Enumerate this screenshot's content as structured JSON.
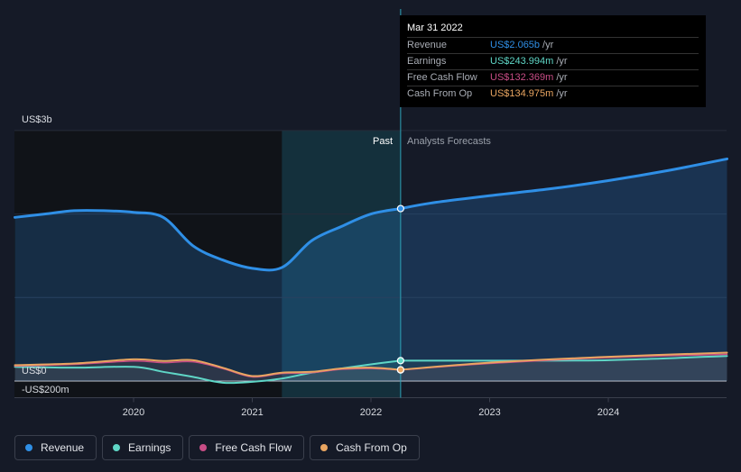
{
  "chart_data": {
    "type": "area",
    "x_ticks": [
      "2020",
      "2021",
      "2022",
      "2023",
      "2024"
    ],
    "y_label_top": "US$3b",
    "y_label_zero": "US$0",
    "y_label_neg": "-US$200m",
    "ylim": [
      -0.2,
      3.0
    ],
    "divider_x": 2022.25,
    "forecast_start": 2021.25,
    "past_label": "Past",
    "forecast_label": "Analysts Forecasts",
    "series": [
      {
        "name": "Revenue",
        "color": "#2f8fe6",
        "line_width": 3,
        "fill": true,
        "points": [
          [
            2019.0,
            1.96
          ],
          [
            2019.25,
            2.0
          ],
          [
            2019.5,
            2.04
          ],
          [
            2019.75,
            2.04
          ],
          [
            2020.0,
            2.02
          ],
          [
            2020.25,
            1.96
          ],
          [
            2020.5,
            1.62
          ],
          [
            2020.75,
            1.45
          ],
          [
            2021.0,
            1.35
          ],
          [
            2021.25,
            1.36
          ],
          [
            2021.5,
            1.68
          ],
          [
            2021.75,
            1.85
          ],
          [
            2022.0,
            2.0
          ],
          [
            2022.25,
            2.065
          ]
        ],
        "forecast": [
          [
            2022.25,
            2.065
          ],
          [
            2022.5,
            2.13
          ],
          [
            2023.0,
            2.22
          ],
          [
            2023.5,
            2.3
          ],
          [
            2024.0,
            2.4
          ],
          [
            2024.5,
            2.52
          ],
          [
            2025.0,
            2.66
          ]
        ]
      },
      {
        "name": "Earnings",
        "color": "#5fd6c6",
        "line_width": 2,
        "fill": false,
        "points": [
          [
            2019.0,
            0.17
          ],
          [
            2019.5,
            0.16
          ],
          [
            2020.0,
            0.17
          ],
          [
            2020.25,
            0.11
          ],
          [
            2020.5,
            0.05
          ],
          [
            2020.75,
            -0.02
          ],
          [
            2021.0,
            -0.01
          ],
          [
            2021.25,
            0.03
          ],
          [
            2021.5,
            0.1
          ],
          [
            2021.75,
            0.15
          ],
          [
            2022.0,
            0.2
          ],
          [
            2022.25,
            0.244
          ]
        ],
        "forecast": [
          [
            2022.25,
            0.244
          ],
          [
            2023.0,
            0.244
          ],
          [
            2024.0,
            0.25
          ],
          [
            2025.0,
            0.3
          ]
        ]
      },
      {
        "name": "Free Cash Flow",
        "color": "#c84d86",
        "line_width": 1.5,
        "fill": false,
        "points": [
          [
            2019.0,
            0.18
          ],
          [
            2019.5,
            0.2
          ],
          [
            2020.0,
            0.24
          ],
          [
            2020.25,
            0.22
          ],
          [
            2020.5,
            0.23
          ],
          [
            2020.75,
            0.15
          ],
          [
            2021.0,
            0.05
          ],
          [
            2021.25,
            0.09
          ],
          [
            2021.5,
            0.1
          ],
          [
            2021.75,
            0.14
          ],
          [
            2022.0,
            0.15
          ],
          [
            2022.25,
            0.132
          ]
        ],
        "forecast": [
          [
            2022.25,
            0.132
          ],
          [
            2023.0,
            0.21
          ],
          [
            2024.0,
            0.28
          ],
          [
            2025.0,
            0.32
          ]
        ]
      },
      {
        "name": "Cash From Op",
        "color": "#e9a561",
        "line_width": 2,
        "fill": false,
        "points": [
          [
            2019.0,
            0.19
          ],
          [
            2019.5,
            0.21
          ],
          [
            2020.0,
            0.26
          ],
          [
            2020.25,
            0.24
          ],
          [
            2020.5,
            0.25
          ],
          [
            2020.75,
            0.16
          ],
          [
            2021.0,
            0.06
          ],
          [
            2021.25,
            0.1
          ],
          [
            2021.5,
            0.11
          ],
          [
            2021.75,
            0.15
          ],
          [
            2022.0,
            0.16
          ],
          [
            2022.25,
            0.135
          ]
        ],
        "forecast": [
          [
            2022.25,
            0.135
          ],
          [
            2023.0,
            0.22
          ],
          [
            2024.0,
            0.29
          ],
          [
            2025.0,
            0.34
          ]
        ]
      }
    ]
  },
  "tooltip": {
    "date": "Mar 31 2022",
    "rows": [
      {
        "label": "Revenue",
        "value": "US$2.065b",
        "unit": "/yr",
        "color": "#2f8fe6"
      },
      {
        "label": "Earnings",
        "value": "US$243.994m",
        "unit": "/yr",
        "color": "#5fd6c6"
      },
      {
        "label": "Free Cash Flow",
        "value": "US$132.369m",
        "unit": "/yr",
        "color": "#c84d86"
      },
      {
        "label": "Cash From Op",
        "value": "US$134.975m",
        "unit": "/yr",
        "color": "#e9a561"
      }
    ]
  },
  "legend": [
    {
      "label": "Revenue",
      "color": "#2f8fe6"
    },
    {
      "label": "Earnings",
      "color": "#5fd6c6"
    },
    {
      "label": "Free Cash Flow",
      "color": "#c84d86"
    },
    {
      "label": "Cash From Op",
      "color": "#e9a561"
    }
  ]
}
